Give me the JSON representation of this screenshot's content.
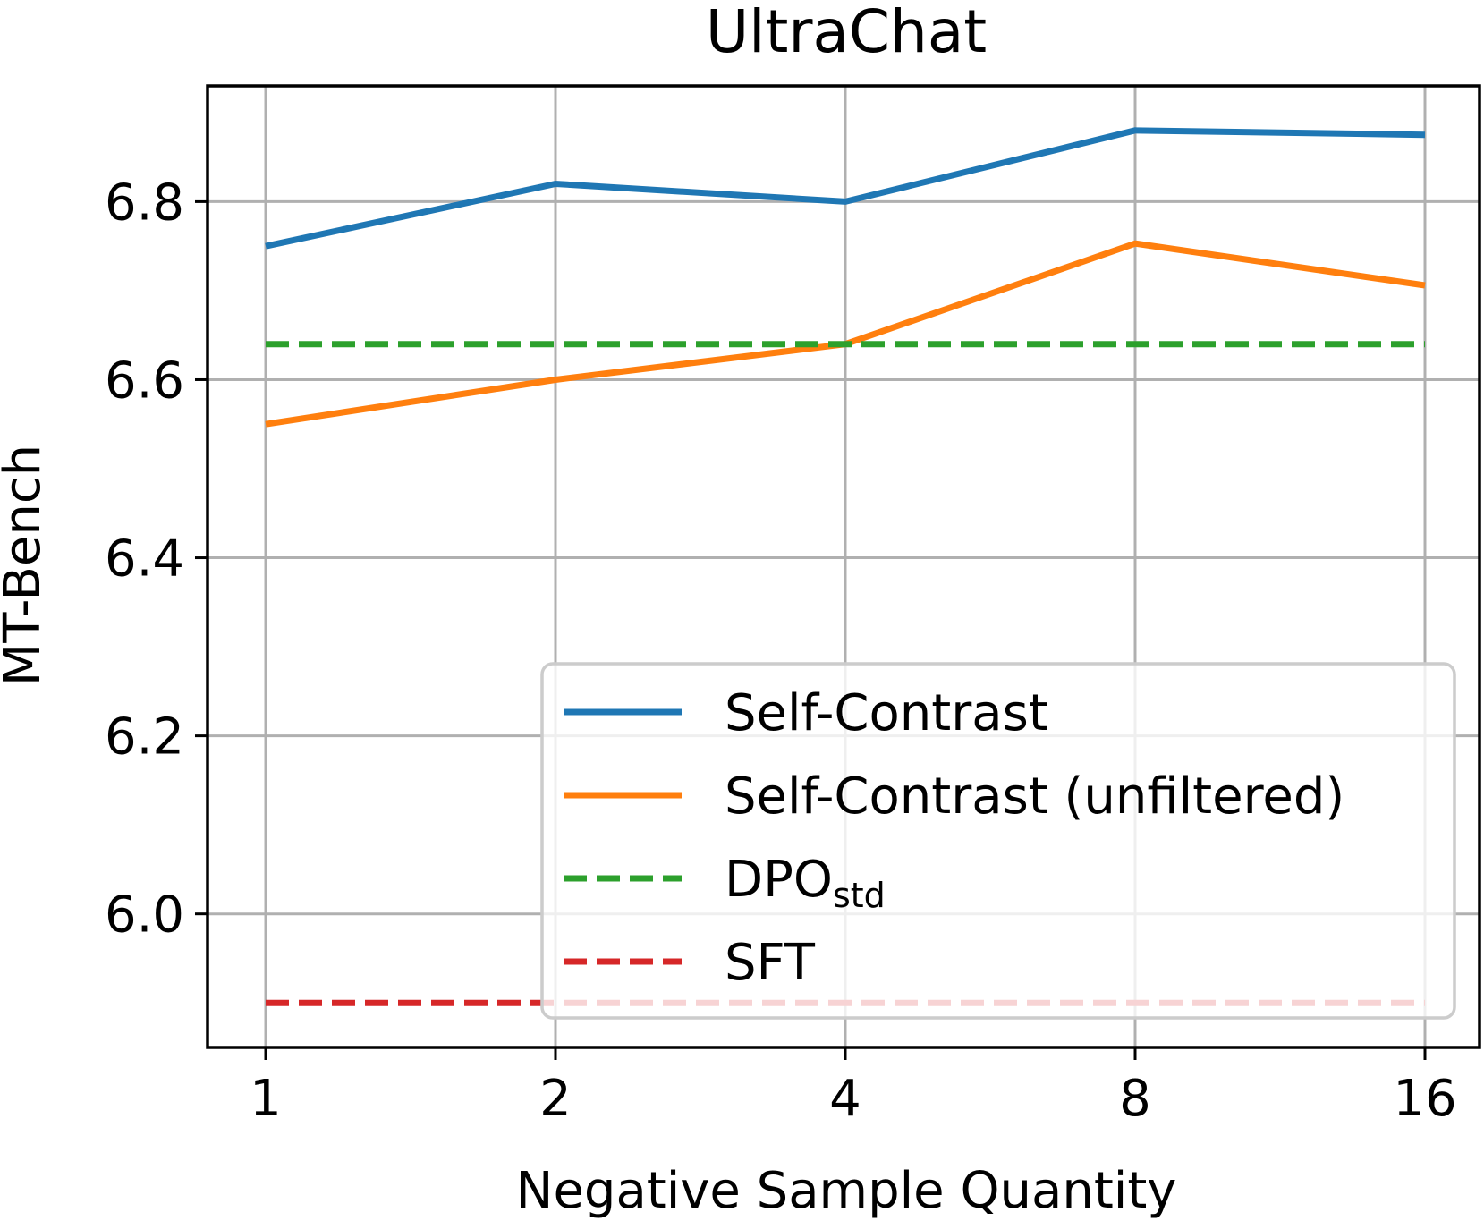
{
  "chart_data": {
    "type": "line",
    "title": "UltraChat",
    "xlabel": "Negative Sample Quantity",
    "ylabel": "MT-Bench",
    "x": [
      1,
      2,
      4,
      8,
      16
    ],
    "x_tick_labels": [
      "1",
      "2",
      "4",
      "8",
      "16"
    ],
    "x_scale": "log2",
    "y_ticks": [
      6.0,
      6.2,
      6.4,
      6.6,
      6.8
    ],
    "y_tick_labels": [
      "6.0",
      "6.2",
      "6.4",
      "6.6",
      "6.8"
    ],
    "ylim": [
      5.85,
      6.93
    ],
    "grid": true,
    "legend_position": "lower-right",
    "series": [
      {
        "name": "Self-Contrast",
        "color": "#1f77b4",
        "style": "solid",
        "values": [
          6.75,
          6.82,
          6.8,
          6.88,
          6.875
        ]
      },
      {
        "name": "Self-Contrast (unfiltered)",
        "color": "#ff7f0e",
        "style": "solid",
        "values": [
          6.55,
          6.6,
          6.64,
          6.753,
          6.706
        ]
      },
      {
        "name": "DPO",
        "name_sub": "std",
        "color": "#2ca02c",
        "style": "dashed",
        "values": [
          6.64,
          6.64,
          6.64,
          6.64,
          6.64
        ]
      },
      {
        "name": "SFT",
        "color": "#d62728",
        "style": "dashed",
        "values": [
          5.9,
          5.9,
          5.9,
          5.9,
          5.9
        ]
      }
    ]
  }
}
